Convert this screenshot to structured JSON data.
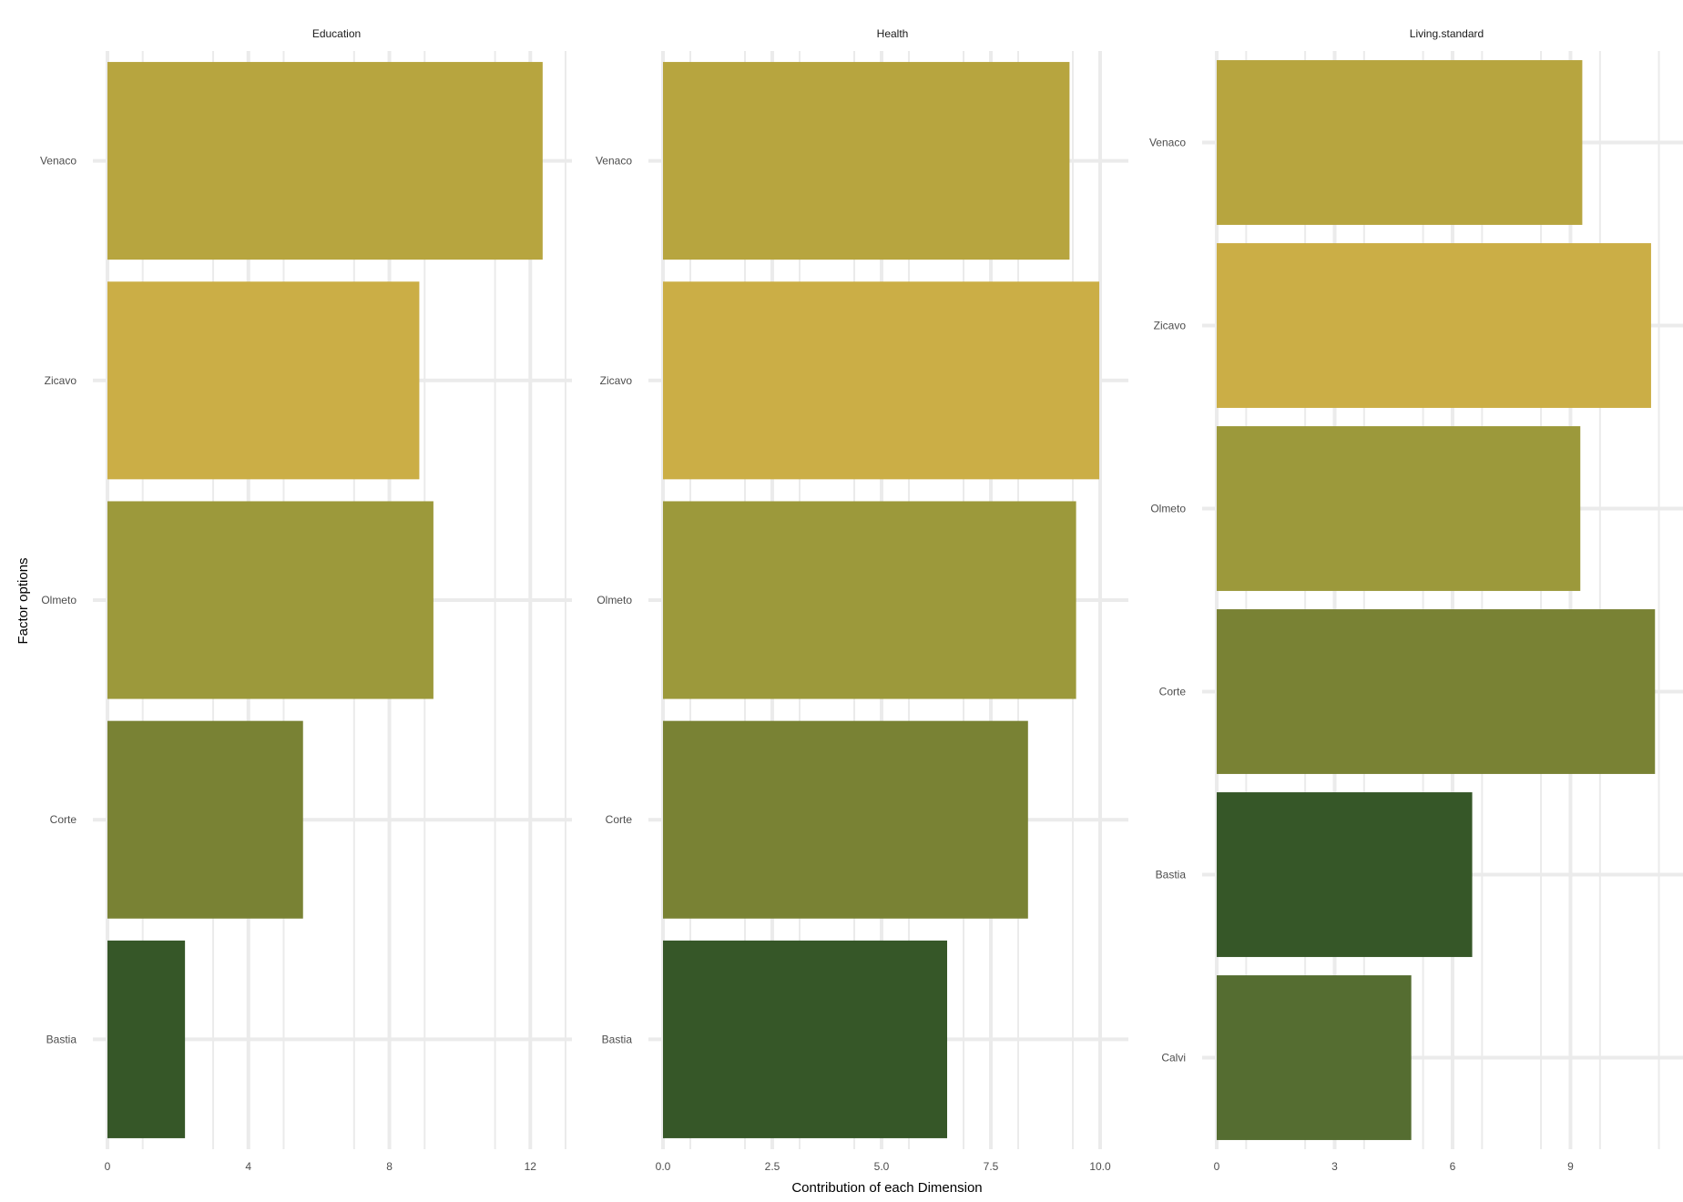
{
  "chart_data": {
    "type": "bar",
    "orientation": "horizontal",
    "xlabel": "Contribution of each Dimension",
    "ylabel": "Factor options",
    "grid": true,
    "legend": "none",
    "colors": {
      "Venaco": "#b7a53f",
      "Zicavo": "#cbae46",
      "Olmeto": "#9c993b",
      "Corte": "#798234",
      "Bastia": "#365728",
      "Calvi": "#556d31"
    },
    "facets": [
      {
        "title": "Education",
        "categories": [
          "Venaco",
          "Zicavo",
          "Olmeto",
          "Corte",
          "Bastia"
        ],
        "values": [
          12.35,
          8.85,
          9.25,
          5.55,
          2.2
        ],
        "xlim": [
          0,
          13
        ],
        "xticks": [
          0,
          4,
          8,
          12
        ],
        "xtick_labels": [
          "0",
          "4",
          "8",
          "12"
        ],
        "minor_step": 2
      },
      {
        "title": "Health",
        "categories": [
          "Venaco",
          "Zicavo",
          "Olmeto",
          "Corte",
          "Bastia"
        ],
        "values": [
          9.3,
          9.98,
          9.45,
          8.35,
          6.5
        ],
        "xlim": [
          0,
          10.5
        ],
        "xticks": [
          0,
          2.5,
          5,
          7.5,
          10
        ],
        "xtick_labels": [
          "0.0",
          "2.5",
          "5.0",
          "7.5",
          "10.0"
        ],
        "minor_step": 1.25
      },
      {
        "title": "Living.standard",
        "categories": [
          "Venaco",
          "Zicavo",
          "Olmeto",
          "Corte",
          "Bastia",
          "Calvi"
        ],
        "values": [
          9.3,
          11.05,
          9.25,
          11.15,
          6.5,
          4.95
        ],
        "xlim": [
          0,
          11.7
        ],
        "xticks": [
          0,
          3,
          6,
          9
        ],
        "xtick_labels": [
          "0",
          "3",
          "6",
          "9"
        ],
        "minor_step": 1.5
      }
    ]
  }
}
